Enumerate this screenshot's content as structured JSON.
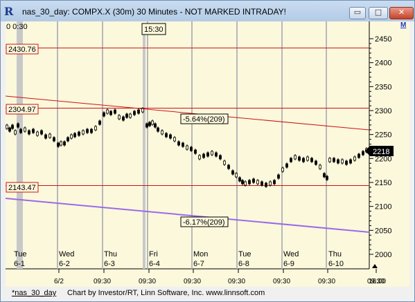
{
  "window": {
    "title": "nas_30_day: COMPX.X (30m) 30 Minutes - NOT MARKED INTRADAY!",
    "app_icon_letter": "R",
    "min_symbol": "▭",
    "max_symbol": "□",
    "close_symbol": "✕",
    "m_badge": "M"
  },
  "chart": {
    "top_clip_text": "0   0:30",
    "cursor_time_label": "15:30",
    "current_price_label": "2218",
    "price_axis_ticks": [
      "2450",
      "2400",
      "2350",
      "2300",
      "2250",
      "2200",
      "2150",
      "2100",
      "2050",
      "2000"
    ],
    "level_labels": [
      "2430.76",
      "2304.97",
      "2143.47"
    ],
    "percent_labels": [
      "-5.64%(209)",
      "-6.17%(209)"
    ],
    "day_labels": [
      {
        "dow": "Tue",
        "date": "6-1"
      },
      {
        "dow": "Wed",
        "date": "6-2"
      },
      {
        "dow": "Thu",
        "date": "6-3"
      },
      {
        "dow": "Fri",
        "date": "6-4"
      },
      {
        "dow": "Mon",
        "date": "6-7"
      },
      {
        "dow": "Tue",
        "date": "6-8"
      },
      {
        "dow": "Wed",
        "date": "6-9"
      },
      {
        "dow": "Thu",
        "date": "6-10"
      }
    ],
    "time_axis_labels": [
      "6/2",
      "09:30",
      "09:30",
      "09:30",
      "09:30",
      "09:30",
      "09:30",
      "09:30",
      "16:00"
    ],
    "colors": {
      "background": "#fbf8dc",
      "level_line": "#d01010",
      "trend_line": "#d01010",
      "lower_trend_line": "#9a6ae8",
      "day_separator": "#b8b8b8",
      "bar": "#000000"
    }
  },
  "status": {
    "symbol": "*nas_30_day",
    "credit": "Chart by Investor/RT, Linn Software, Inc. www.linnsoft.com"
  }
}
